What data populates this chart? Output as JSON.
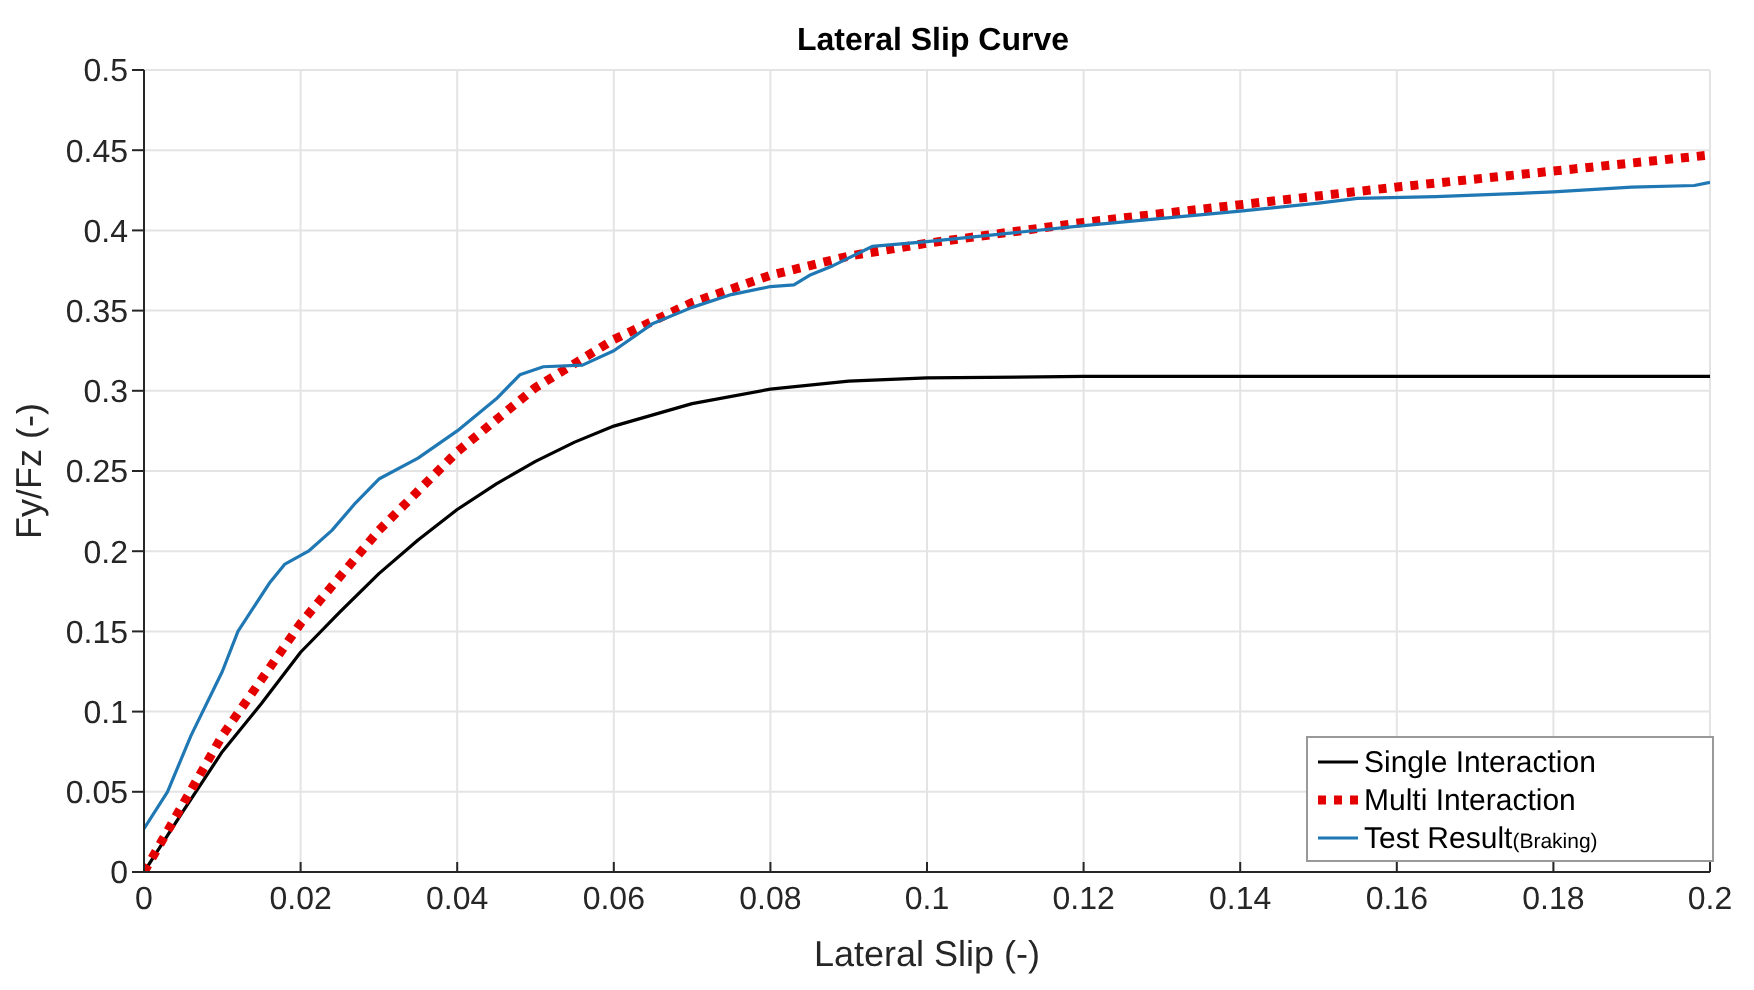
{
  "chart_data": {
    "type": "line",
    "title": "Lateral Slip Curve",
    "xlabel": "Lateral Slip (-)",
    "ylabel": "Fy/Fz (-)",
    "xlim": [
      0,
      0.2
    ],
    "xticks": [
      0,
      0.02,
      0.04,
      0.06,
      0.08,
      0.1,
      0.12,
      0.14,
      0.16,
      0.18,
      0.2
    ],
    "ylim": [
      0,
      0.5
    ],
    "yticks": [
      0,
      0.05,
      0.1,
      0.15,
      0.2,
      0.25,
      0.3,
      0.35,
      0.4,
      0.45,
      0.5
    ],
    "grid": true,
    "legend": "bottom right",
    "marker": "none",
    "series": [
      {
        "name": "Single Interaction",
        "color": "#000000",
        "line_style": "solid",
        "x": [
          0,
          0.005,
          0.01,
          0.015,
          0.02,
          0.025,
          0.03,
          0.035,
          0.04,
          0.045,
          0.05,
          0.055,
          0.06,
          0.07,
          0.08,
          0.09,
          0.1,
          0.12,
          0.2
        ],
        "values": [
          0,
          0.038,
          0.075,
          0.105,
          0.137,
          0.162,
          0.186,
          0.207,
          0.226,
          0.242,
          0.256,
          0.268,
          0.278,
          0.292,
          0.301,
          0.306,
          0.308,
          0.309,
          0.309
        ]
      },
      {
        "name": "Multi Interaction",
        "color": "#e50000",
        "line_style": "dotted",
        "x": [
          0,
          0.01,
          0.02,
          0.03,
          0.04,
          0.05,
          0.06,
          0.07,
          0.08,
          0.09,
          0.1,
          0.12,
          0.14,
          0.16,
          0.18,
          0.2
        ],
        "values": [
          0,
          0.085,
          0.155,
          0.213,
          0.262,
          0.302,
          0.332,
          0.355,
          0.372,
          0.384,
          0.392,
          0.405,
          0.416,
          0.427,
          0.437,
          0.447
        ]
      },
      {
        "name": "Test Result$_{(Braking)}$",
        "color": "#1f77b4",
        "line_style": "solid",
        "x": [
          0,
          0.003,
          0.006,
          0.01,
          0.012,
          0.016,
          0.018,
          0.021,
          0.024,
          0.027,
          0.03,
          0.035,
          0.04,
          0.045,
          0.048,
          0.051,
          0.056,
          0.06,
          0.065,
          0.07,
          0.075,
          0.08,
          0.083,
          0.085,
          0.088,
          0.093,
          0.1,
          0.11,
          0.12,
          0.14,
          0.15,
          0.155,
          0.165,
          0.18,
          0.19,
          0.198,
          0.2
        ],
        "values": [
          0.027,
          0.05,
          0.085,
          0.125,
          0.15,
          0.18,
          0.192,
          0.2,
          0.213,
          0.23,
          0.245,
          0.258,
          0.275,
          0.295,
          0.31,
          0.315,
          0.316,
          0.325,
          0.342,
          0.352,
          0.36,
          0.365,
          0.366,
          0.372,
          0.378,
          0.39,
          0.393,
          0.398,
          0.403,
          0.412,
          0.417,
          0.42,
          0.421,
          0.424,
          0.427,
          0.428,
          0.43
        ]
      }
    ]
  }
}
